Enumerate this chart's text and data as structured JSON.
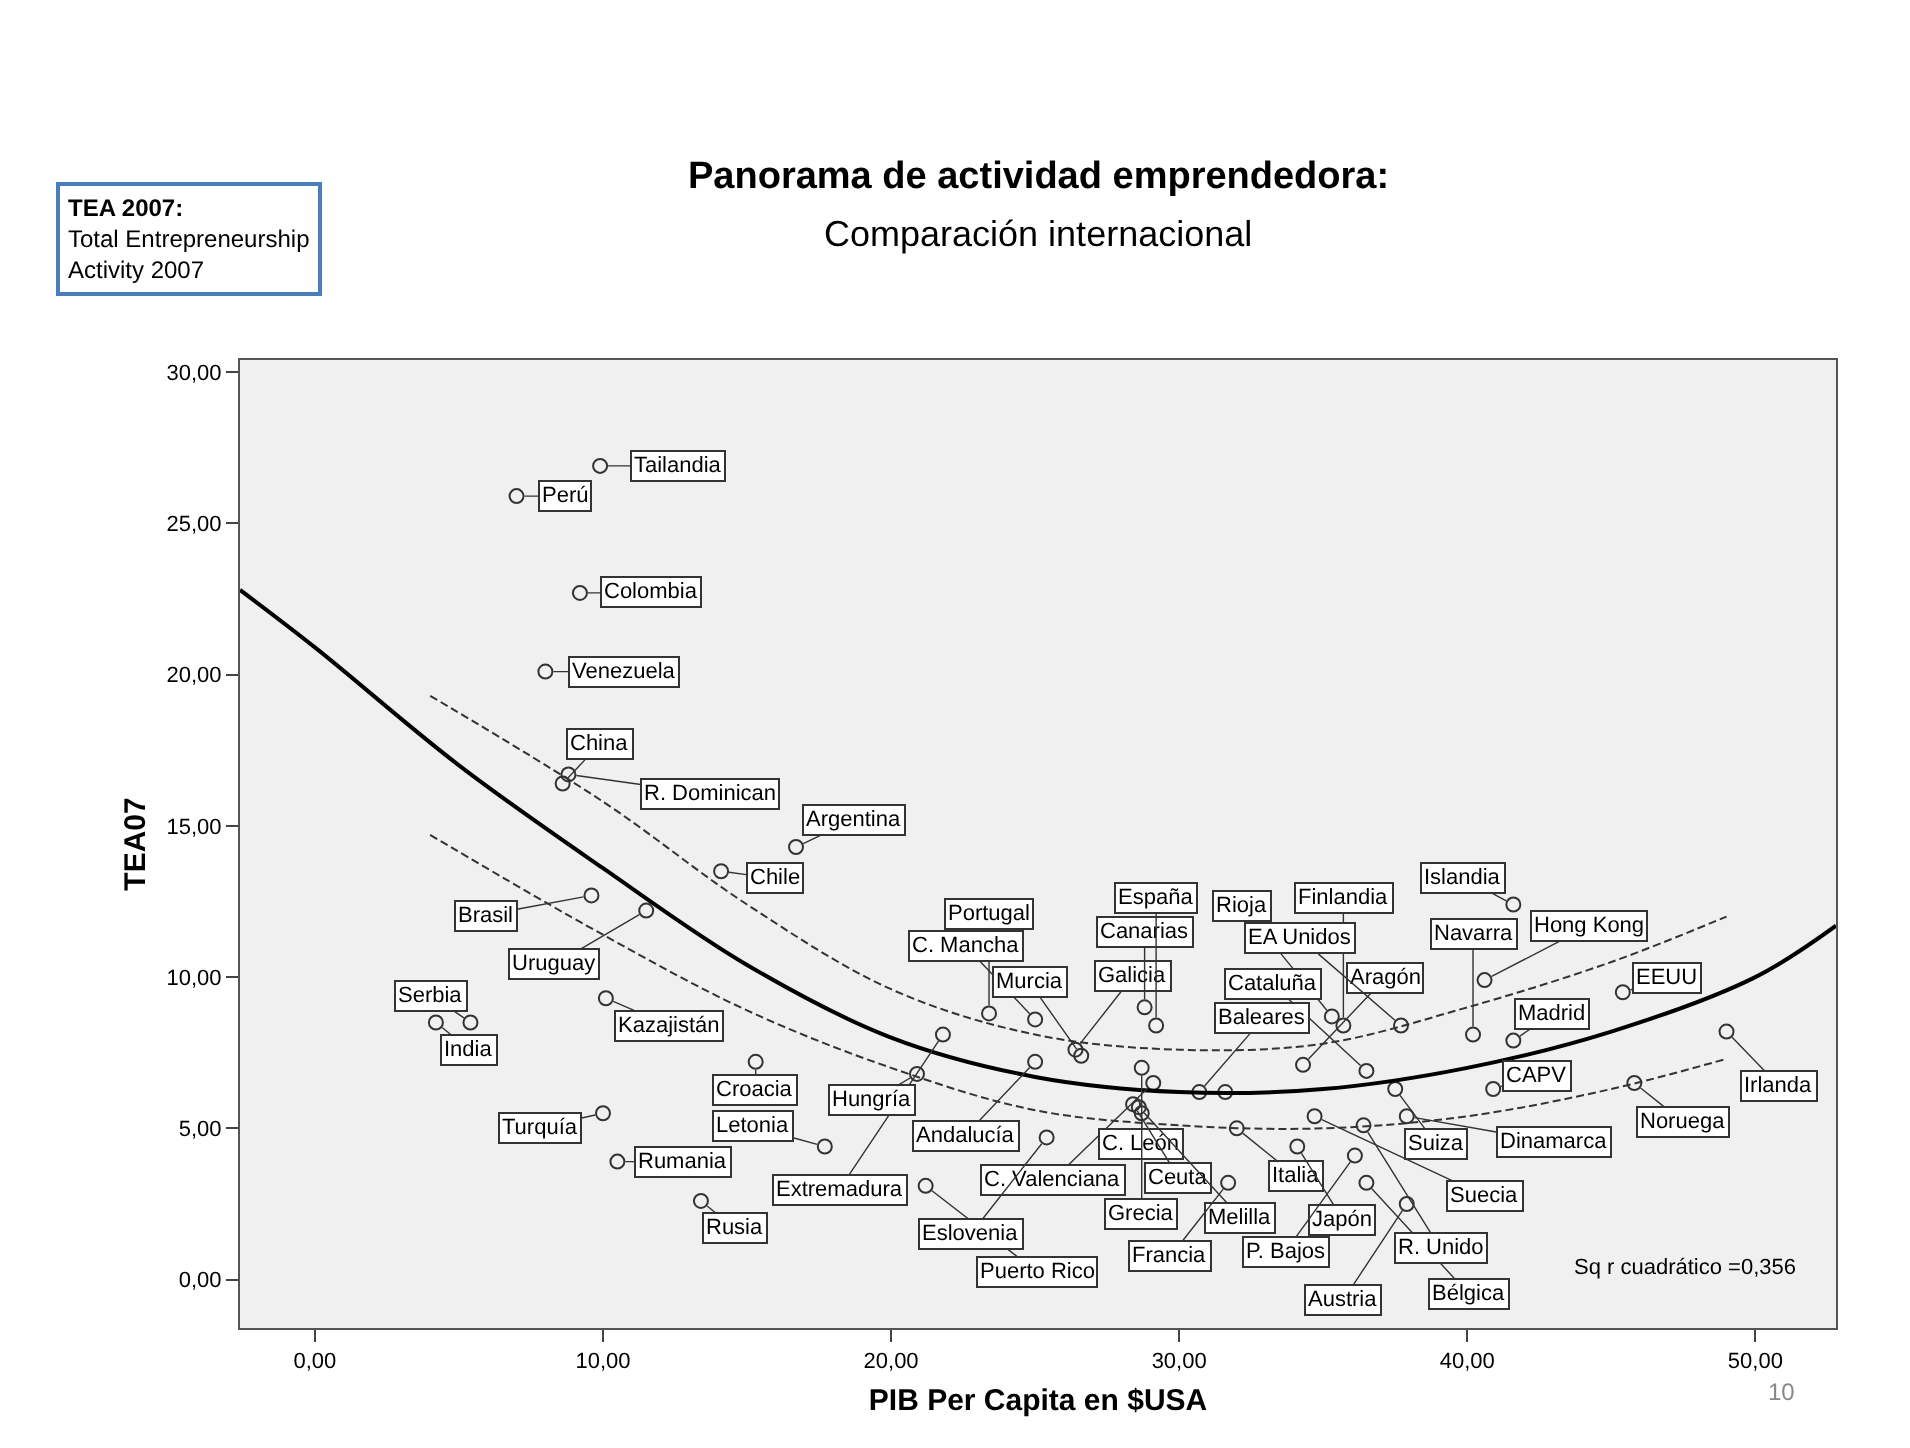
{
  "chart_data": {
    "type": "scatter",
    "title": "Panorama de actividad emprendedora:",
    "subtitle": "Comparación internacional",
    "xlabel": "PIB Per Capita en $USA",
    "ylabel": "TEA07",
    "xlim": [
      -2.6,
      52.8
    ],
    "ylim": [
      -1.6,
      30.4
    ],
    "xticks": [
      {
        "value": 0,
        "label": "0,00"
      },
      {
        "value": 10,
        "label": "10,00"
      },
      {
        "value": 20,
        "label": "20,00"
      },
      {
        "value": 30,
        "label": "30,00"
      },
      {
        "value": 40,
        "label": "40,00"
      },
      {
        "value": 50,
        "label": "50,00"
      }
    ],
    "yticks": [
      {
        "value": 0,
        "label": "0,00"
      },
      {
        "value": 5,
        "label": "5,00"
      },
      {
        "value": 10,
        "label": "10,00"
      },
      {
        "value": 15,
        "label": "15,00"
      },
      {
        "value": 20,
        "label": "20,00"
      },
      {
        "value": 25,
        "label": "25,00"
      },
      {
        "value": 30,
        "label": "30,00"
      }
    ],
    "grid": false,
    "series": [
      {
        "marker": "circle",
        "color": "#333333",
        "x": [
          9.9,
          7.0,
          9.2,
          8.0,
          8.6,
          8.8,
          16.7,
          14.1,
          9.6,
          11.5,
          10.1,
          4.2,
          5.4,
          10.0,
          10.5,
          13.4,
          15.3,
          17.7,
          21.8,
          23.4,
          20.9,
          25.0,
          25.0,
          26.4,
          26.6,
          28.8,
          29.2,
          29.1,
          28.7,
          35.3,
          35.7,
          36.5,
          30.7,
          34.3,
          28.4,
          28.6,
          28.7,
          32.0,
          31.7,
          34.1,
          34.7,
          36.5,
          36.1,
          36.4,
          37.9,
          37.5,
          37.9,
          21.2,
          25.4,
          41.6,
          40.6,
          45.4,
          49.0,
          40.2,
          41.6,
          37.7,
          45.8,
          40.9,
          31.6
        ],
        "values": [
          26.9,
          25.9,
          22.7,
          20.1,
          16.4,
          16.7,
          14.3,
          13.5,
          12.7,
          12.2,
          9.3,
          8.5,
          8.5,
          5.5,
          3.9,
          2.6,
          7.2,
          4.4,
          8.1,
          8.8,
          6.8,
          7.2,
          8.6,
          7.6,
          7.4,
          9.0,
          8.4,
          6.5,
          7.0,
          8.7,
          8.4,
          6.9,
          6.2,
          7.1,
          5.8,
          5.7,
          5.5,
          5.0,
          3.2,
          4.4,
          5.4,
          3.2,
          4.1,
          5.1,
          5.4,
          6.3,
          2.5,
          3.1,
          4.7,
          12.4,
          9.9,
          9.5,
          8.2,
          8.1,
          7.9,
          8.4,
          6.5,
          6.3,
          6.2
        ]
      },
      {
        "type": "line",
        "marker": "none",
        "color": "#000000",
        "line_style": "solid",
        "x": [
          -2.6,
          0,
          5,
          10,
          15,
          20,
          25,
          30,
          35,
          40,
          45,
          50,
          52.8
        ],
        "values": [
          22.8,
          20.9,
          17.0,
          13.6,
          10.4,
          8.0,
          6.7,
          6.2,
          6.3,
          7.0,
          8.2,
          10.0,
          11.7
        ]
      },
      {
        "type": "line",
        "marker": "none",
        "color": "#333333",
        "line_style": "dashed",
        "x": [
          4,
          10,
          15,
          20,
          25,
          30,
          35,
          40,
          45,
          49
        ],
        "values": [
          19.3,
          15.8,
          12.4,
          9.6,
          8.1,
          7.6,
          7.8,
          9.0,
          10.5,
          12.0
        ]
      },
      {
        "type": "line",
        "marker": "none",
        "color": "#333333",
        "line_style": "dashed",
        "x": [
          4,
          10,
          15,
          20,
          25,
          30,
          35,
          40,
          45,
          49
        ],
        "values": [
          14.7,
          11.4,
          8.9,
          7.0,
          5.6,
          5.1,
          5.0,
          5.4,
          6.3,
          7.3
        ]
      }
    ],
    "annotations": [
      "TEA 2007:\nTotal Entrepreneurship\nActivity 2007",
      "Sq r cuadrático =0,356",
      "10",
      {
        "text": "Tailandia",
        "x": 9.9,
        "y": 26.9
      },
      {
        "text": "Perú",
        "x": 7.0,
        "y": 25.9
      },
      {
        "text": "Colombia",
        "x": 9.2,
        "y": 22.7
      },
      {
        "text": "Venezuela",
        "x": 8.0,
        "y": 20.1
      },
      {
        "text": "China",
        "x": 8.6,
        "y": 16.4
      },
      {
        "text": "R. Dominican",
        "x": 8.8,
        "y": 16.7
      },
      {
        "text": "Argentina",
        "x": 16.7,
        "y": 14.3
      },
      {
        "text": "Chile",
        "x": 14.1,
        "y": 13.5
      },
      {
        "text": "Brasil",
        "x": 9.6,
        "y": 12.7
      },
      {
        "text": "Uruguay",
        "x": 11.5,
        "y": 12.2
      },
      {
        "text": "Kazajistán",
        "x": 10.1,
        "y": 9.3
      },
      {
        "text": "India",
        "x": 4.2,
        "y": 8.5
      },
      {
        "text": "Serbia",
        "x": 5.4,
        "y": 8.5
      },
      {
        "text": "Turquía",
        "x": 10.0,
        "y": 5.5
      },
      {
        "text": "Rumania",
        "x": 10.5,
        "y": 3.9
      },
      {
        "text": "Rusia",
        "x": 13.4,
        "y": 2.6
      },
      {
        "text": "Croacia",
        "x": 15.3,
        "y": 7.2
      },
      {
        "text": "Letonia",
        "x": 17.7,
        "y": 4.4
      },
      {
        "text": "Extremadura",
        "x": 21.8,
        "y": 8.1
      },
      {
        "text": "Portugal",
        "x": 23.4,
        "y": 8.8
      },
      {
        "text": "Hungría",
        "x": 20.9,
        "y": 6.8
      },
      {
        "text": "Andalucía",
        "x": 25.0,
        "y": 7.2
      },
      {
        "text": "C. Mancha",
        "x": 25.0,
        "y": 8.6
      },
      {
        "text": "Galicia",
        "x": 26.4,
        "y": 7.6
      },
      {
        "text": "Murcia",
        "x": 26.6,
        "y": 7.4
      },
      {
        "text": "Canarias",
        "x": 28.8,
        "y": 9.0
      },
      {
        "text": "España",
        "x": 29.2,
        "y": 8.4
      },
      {
        "text": "C. Valenciana",
        "x": 29.1,
        "y": 6.5
      },
      {
        "text": "C. León",
        "x": 28.7,
        "y": 7.0
      },
      {
        "text": "Rioja",
        "x": 35.3,
        "y": 8.7
      },
      {
        "text": "Finlandia",
        "x": 35.7,
        "y": 8.4
      },
      {
        "text": "Cataluña",
        "x": 36.5,
        "y": 6.9
      },
      {
        "text": "Baleares",
        "x": 30.7,
        "y": 6.2
      },
      {
        "text": "Aragón",
        "x": 34.3,
        "y": 7.1
      },
      {
        "text": "Ceuta",
        "x": 28.4,
        "y": 5.8
      },
      {
        "text": "Melilla",
        "x": 28.6,
        "y": 5.7
      },
      {
        "text": "Grecia",
        "x": 28.7,
        "y": 5.5
      },
      {
        "text": "Italia",
        "x": 32.0,
        "y": 5.0
      },
      {
        "text": "Francia",
        "x": 31.7,
        "y": 3.2
      },
      {
        "text": "Japón",
        "x": 34.1,
        "y": 4.4
      },
      {
        "text": "Suecia",
        "x": 34.7,
        "y": 5.4
      },
      {
        "text": "Bélgica",
        "x": 36.5,
        "y": 3.2
      },
      {
        "text": "P. Bajos",
        "x": 36.1,
        "y": 4.1
      },
      {
        "text": "R. Unido",
        "x": 36.4,
        "y": 5.1
      },
      {
        "text": "Dinamarca",
        "x": 37.9,
        "y": 5.4
      },
      {
        "text": "Suiza",
        "x": 37.5,
        "y": 6.3
      },
      {
        "text": "Austria",
        "x": 37.9,
        "y": 2.5
      },
      {
        "text": "Puerto Rico",
        "x": 21.2,
        "y": 3.1
      },
      {
        "text": "Eslovenia",
        "x": 25.4,
        "y": 4.7
      },
      {
        "text": "Islandia",
        "x": 41.6,
        "y": 12.4
      },
      {
        "text": "Hong Kong",
        "x": 40.6,
        "y": 9.9
      },
      {
        "text": "EEUU",
        "x": 45.4,
        "y": 9.5
      },
      {
        "text": "Irlanda",
        "x": 49.0,
        "y": 8.2
      },
      {
        "text": "Navarra",
        "x": 40.2,
        "y": 8.1
      },
      {
        "text": "Madrid",
        "x": 41.6,
        "y": 7.9
      },
      {
        "text": "EA Unidos",
        "x": 37.7,
        "y": 8.4
      },
      {
        "text": "Noruega",
        "x": 45.8,
        "y": 6.5
      },
      {
        "text": "CAPV",
        "x": 40.9,
        "y": 6.3
      }
    ]
  }
}
